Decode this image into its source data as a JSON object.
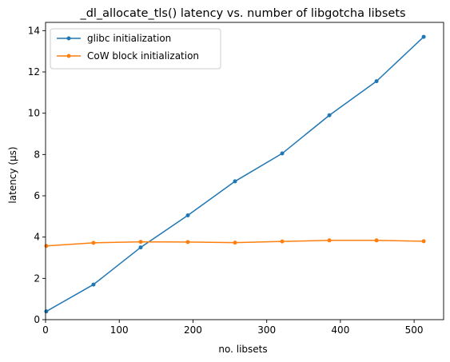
{
  "chart_data": {
    "type": "line",
    "title": "_dl_allocate_tls() latency vs. number of libgotcha libsets",
    "xlabel": "no. libsets",
    "ylabel": "latency (µs)",
    "xlim": [
      0,
      540
    ],
    "ylim": [
      0,
      14.4
    ],
    "xticks": [
      0,
      100,
      200,
      300,
      400,
      500
    ],
    "yticks": [
      0,
      2,
      4,
      6,
      8,
      10,
      12,
      14
    ],
    "x": [
      1,
      65,
      129,
      193,
      257,
      321,
      385,
      449,
      513
    ],
    "series": [
      {
        "name": "glibc initialization",
        "color": "#1f77b4",
        "marker": "circle",
        "values": [
          0.4,
          1.7,
          3.5,
          5.05,
          6.7,
          8.05,
          9.9,
          11.55,
          13.7
        ]
      },
      {
        "name": "CoW block initialization",
        "color": "#ff7f0e",
        "marker": "circle",
        "values": [
          3.57,
          3.72,
          3.77,
          3.76,
          3.73,
          3.79,
          3.84,
          3.84,
          3.8
        ]
      }
    ],
    "legend": {
      "placement": "top-left",
      "entries": [
        "glibc initialization",
        "CoW block initialization"
      ]
    },
    "grid": false
  }
}
